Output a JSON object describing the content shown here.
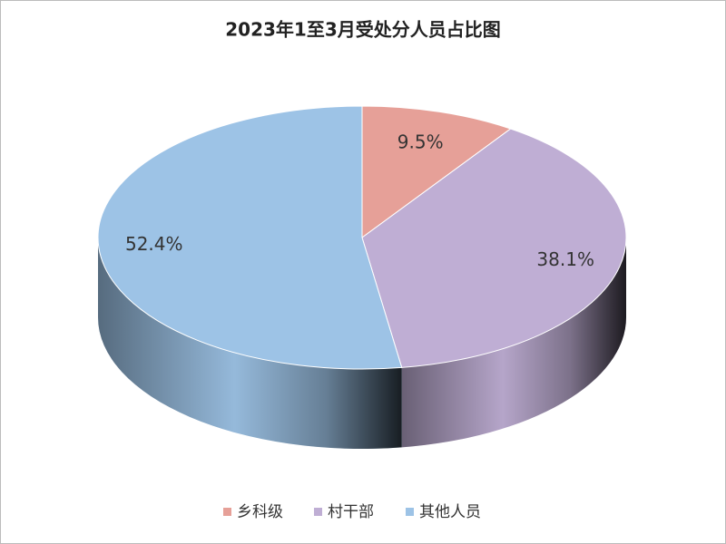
{
  "chart_data": {
    "type": "pie3d",
    "title": "2023年1至3月受处分人员占比图",
    "categories": [
      "乡科级",
      "村干部",
      "其他人员"
    ],
    "values": [
      9.5,
      38.1,
      52.4
    ],
    "value_labels": [
      "9.5%",
      "38.1%",
      "52.4%"
    ],
    "colors": [
      "#e6a098",
      "#bfaed4",
      "#9dc3e6"
    ]
  }
}
